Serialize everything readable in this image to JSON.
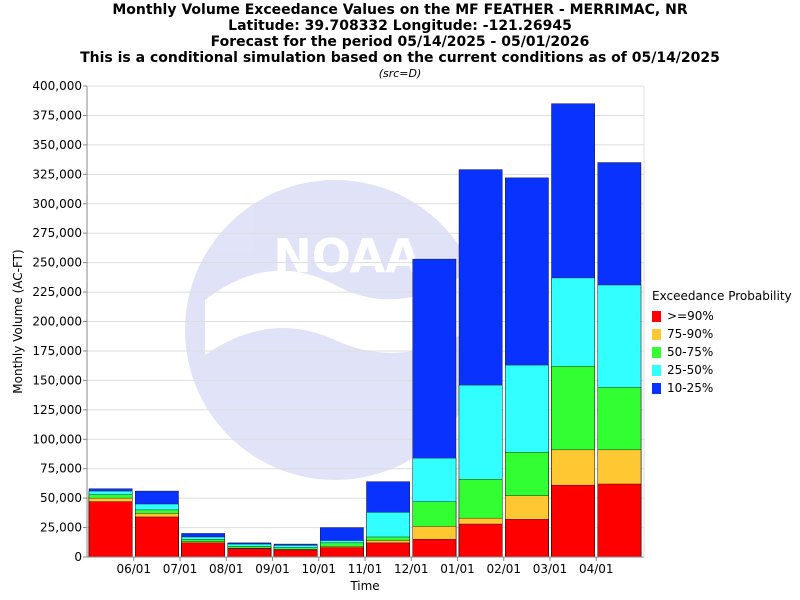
{
  "titles": {
    "line1": "Monthly Volume Exceedance Values on the MF FEATHER - MERRIMAC, NR",
    "line2": "Latitude: 39.708332 Longitude: -121.26945",
    "line3": "Forecast for the period 05/14/2025 - 05/01/2026",
    "line4": "This is a conditional simulation based on the current conditions as of 05/14/2025",
    "line5": "(src=D)"
  },
  "legend": {
    "title": "Exceedance Probability",
    "items": [
      {
        "label": ">=90%",
        "color": "#ff0000"
      },
      {
        "label": "75-90%",
        "color": "#ffc832"
      },
      {
        "label": "50-75%",
        "color": "#32ff32"
      },
      {
        "label": "25-50%",
        "color": "#32ffff"
      },
      {
        "label": "10-25%",
        "color": "#0a32ff"
      }
    ]
  },
  "chart_data": {
    "type": "bar",
    "stacked": true,
    "xlabel": "Time",
    "ylabel": "Monthly Volume (AC-FT)",
    "ylim": [
      0,
      400000
    ],
    "y_ticks": [
      "0",
      "25,000",
      "50,000",
      "75,000",
      "100,000",
      "125,000",
      "150,000",
      "175,000",
      "200,000",
      "225,000",
      "250,000",
      "275,000",
      "300,000",
      "325,000",
      "350,000",
      "375,000",
      "400,000"
    ],
    "x_tick_labels": [
      "06/01",
      "07/01",
      "08/01",
      "09/01",
      "10/01",
      "11/01",
      "12/01",
      "01/01",
      "02/01",
      "03/01",
      "04/01"
    ],
    "watermark": "NOAA",
    "series": [
      {
        "name": ">=90%",
        "cumulative_values": [
          47000,
          34000,
          12000,
          7000,
          6000,
          8000,
          12000,
          15000,
          28000,
          32000,
          61000,
          62000
        ]
      },
      {
        "name": "75-90%",
        "cumulative_values": [
          50000,
          37000,
          13000,
          7500,
          6500,
          9000,
          14000,
          26000,
          33000,
          52000,
          91000,
          91000
        ]
      },
      {
        "name": "50-75%",
        "cumulative_values": [
          53000,
          40000,
          15000,
          9000,
          8000,
          12000,
          17000,
          47000,
          66000,
          89000,
          162000,
          144000
        ]
      },
      {
        "name": "25-50%",
        "cumulative_values": [
          56000,
          45000,
          17000,
          11000,
          10000,
          14000,
          38000,
          84000,
          146000,
          163000,
          237000,
          231000
        ]
      },
      {
        "name": "10-25%",
        "cumulative_values": [
          58000,
          56000,
          20000,
          12000,
          11000,
          25000,
          64000,
          253000,
          329000,
          322000,
          385000,
          335000
        ]
      }
    ]
  }
}
